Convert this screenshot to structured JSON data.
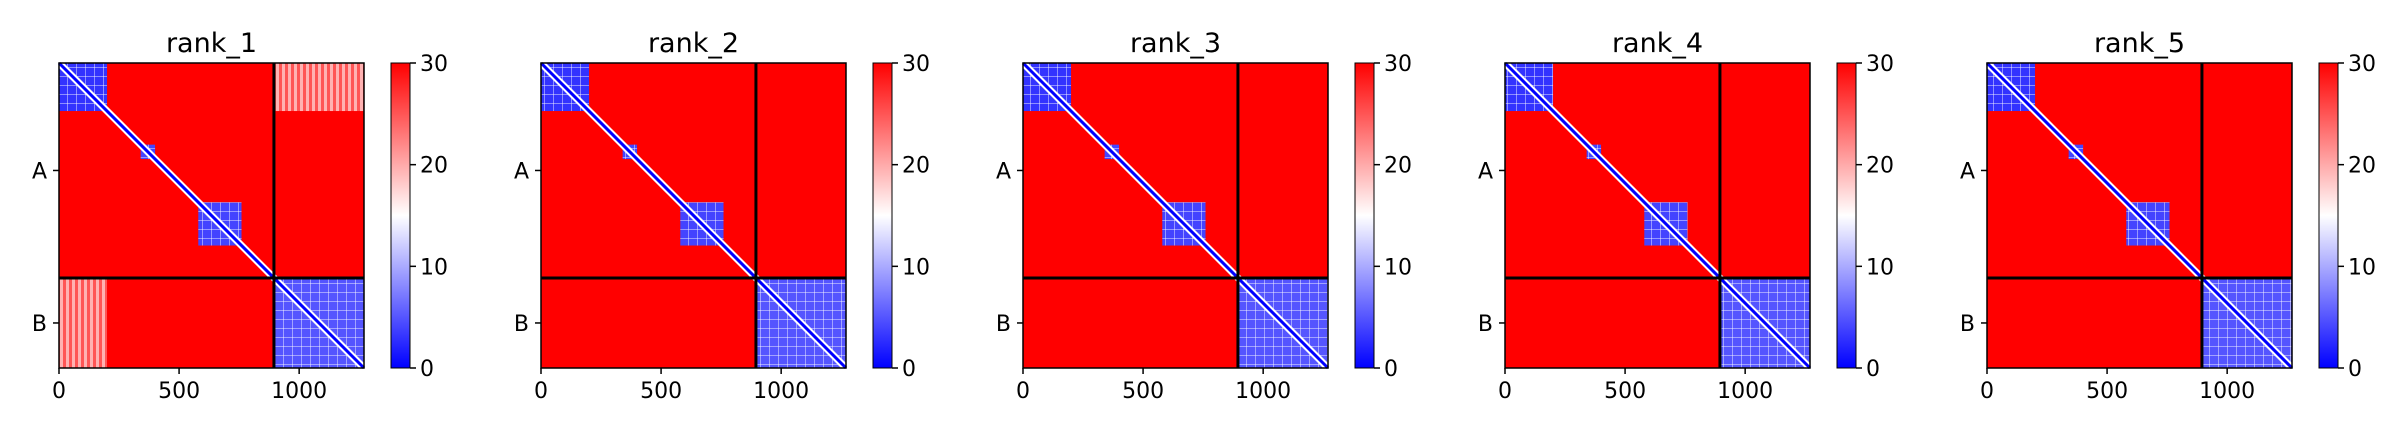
{
  "chart_data": {
    "type": "heatmap",
    "colormap": {
      "name": "bwr",
      "low": "#0000ff",
      "mid": "#ffffff",
      "high": "#ff0000"
    },
    "panels": [
      {
        "title": "rank_1",
        "blocks": [
          [
            0,
            200,
            0,
            200,
            3
          ],
          [
            340,
            400,
            340,
            400,
            4
          ],
          [
            580,
            760,
            580,
            760,
            4
          ],
          [
            900,
            1270,
            900,
            1270,
            5
          ]
        ],
        "light_patches": [
          [
            900,
            1270,
            0,
            200,
            25
          ],
          [
            0,
            200,
            900,
            1270,
            25
          ]
        ]
      },
      {
        "title": "rank_2",
        "blocks": [
          [
            0,
            200,
            0,
            200,
            3
          ],
          [
            340,
            400,
            340,
            400,
            4
          ],
          [
            580,
            760,
            580,
            760,
            4
          ],
          [
            890,
            1270,
            890,
            1270,
            5
          ]
        ],
        "light_patches": []
      },
      {
        "title": "rank_3",
        "blocks": [
          [
            0,
            200,
            0,
            200,
            3
          ],
          [
            340,
            400,
            340,
            400,
            4
          ],
          [
            580,
            760,
            580,
            760,
            4
          ],
          [
            890,
            1270,
            890,
            1270,
            5
          ]
        ],
        "light_patches": []
      },
      {
        "title": "rank_4",
        "blocks": [
          [
            0,
            200,
            0,
            200,
            3
          ],
          [
            340,
            400,
            340,
            400,
            4
          ],
          [
            580,
            760,
            580,
            760,
            4
          ],
          [
            890,
            1270,
            890,
            1270,
            5
          ]
        ],
        "light_patches": []
      },
      {
        "title": "rank_5",
        "blocks": [
          [
            0,
            200,
            0,
            200,
            3
          ],
          [
            340,
            400,
            340,
            400,
            4
          ],
          [
            580,
            760,
            580,
            760,
            4
          ],
          [
            890,
            1270,
            890,
            1270,
            5
          ]
        ],
        "light_patches": []
      }
    ],
    "background_value": 30,
    "diagonal_value": 0,
    "n_residues": 1270,
    "chain_boundary": 895,
    "chains": [
      "A",
      "B"
    ],
    "x_ticks": [
      0,
      500,
      1000
    ],
    "x_tick_labels": [
      "0",
      "500",
      "1000"
    ],
    "xlim": [
      0,
      1270
    ],
    "colorbar": {
      "vmin": 0,
      "vmax": 30,
      "ticks": [
        0,
        10,
        20,
        30
      ],
      "tick_labels": [
        "0",
        "10",
        "20",
        "30"
      ]
    }
  }
}
